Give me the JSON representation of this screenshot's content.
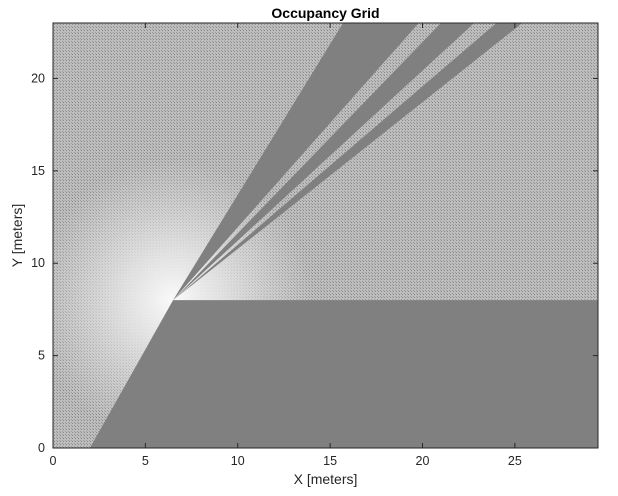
{
  "chart_data": {
    "type": "heatmap",
    "title": "Occupancy Grid",
    "xlabel": "X [meters]",
    "ylabel": "Y [meters]",
    "xlim": [
      0,
      29.5
    ],
    "ylim": [
      0,
      23
    ],
    "xticks": [
      0,
      5,
      10,
      15,
      20,
      25
    ],
    "yticks": [
      0,
      5,
      10,
      15,
      20
    ],
    "grid": false,
    "colormap": "gray",
    "colors": {
      "occupied_region": "#808080",
      "free_space_center": "#fafafa",
      "background": "#ffffff",
      "axis": "#262626"
    },
    "sensor_origin": [
      6.5,
      8.0
    ],
    "occupied_regions": [
      {
        "vertices": [
          [
            2.0,
            0
          ],
          [
            6.5,
            8.0
          ],
          [
            29.5,
            8.0
          ],
          [
            29.5,
            0
          ]
        ]
      },
      {
        "vertices": [
          [
            6.5,
            8.0
          ],
          [
            15.7,
            23.0
          ],
          [
            19.8,
            23.0
          ]
        ]
      },
      {
        "vertices": [
          [
            6.5,
            8.0
          ],
          [
            21.0,
            23.0
          ],
          [
            22.8,
            23.0
          ]
        ]
      },
      {
        "vertices": [
          [
            6.5,
            8.0
          ],
          [
            24.0,
            23.0
          ],
          [
            25.4,
            23.0
          ]
        ]
      }
    ]
  }
}
